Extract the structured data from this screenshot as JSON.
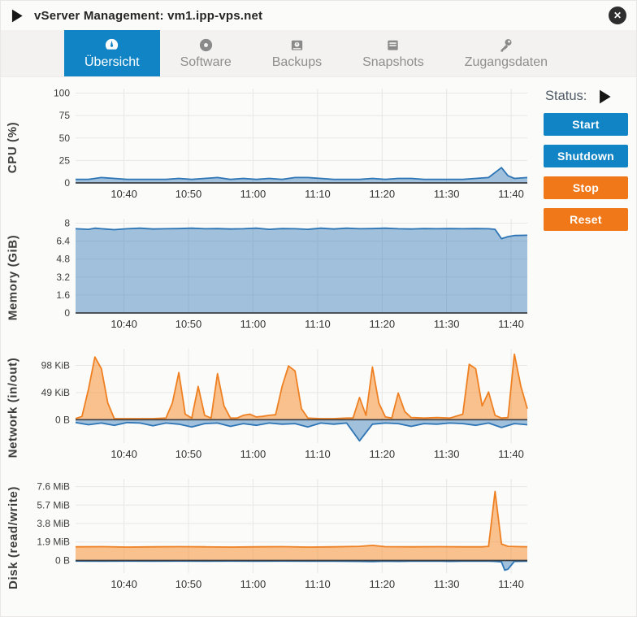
{
  "window": {
    "title": "vServer Management: vm1.ipp-vps.net",
    "close_glyph": "✕"
  },
  "tabs": [
    {
      "label": "Übersicht",
      "icon": "gauge-icon",
      "active": true
    },
    {
      "label": "Software",
      "icon": "disc-icon",
      "active": false
    },
    {
      "label": "Backups",
      "icon": "backup-drive-icon",
      "active": false
    },
    {
      "label": "Snapshots",
      "icon": "snapshot-drive-icon",
      "active": false
    },
    {
      "label": "Zugangsdaten",
      "icon": "key-icon",
      "active": false
    }
  ],
  "status": {
    "label": "Status:",
    "state_icon": "running-play-icon",
    "buttons": [
      {
        "label": "Start",
        "color": "#1184c5"
      },
      {
        "label": "Shutdown",
        "color": "#1184c5"
      },
      {
        "label": "Stop",
        "color": "#f07819"
      },
      {
        "label": "Reset",
        "color": "#f07819"
      }
    ]
  },
  "colors": {
    "accent_blue": "#1184c5",
    "accent_orange": "#f07819",
    "series_blue_line": "#2e75b5",
    "series_blue_fill": "rgba(49,119,181,0.45)",
    "series_orange_line": "#ef8022",
    "series_orange_fill": "rgba(245,146,52,0.55)"
  },
  "chart_data": [
    {
      "type": "area",
      "ylabel": "CPU (%)",
      "x_note": "minutes since 10:32:30",
      "xlim": [
        0,
        70
      ],
      "ylim": [
        0,
        105
      ],
      "grid": true,
      "yticks": [
        {
          "v": 0,
          "label": "0"
        },
        {
          "v": 25,
          "label": "25"
        },
        {
          "v": 50,
          "label": "50"
        },
        {
          "v": 75,
          "label": "75"
        },
        {
          "v": 100,
          "label": "100"
        }
      ],
      "xticks": [
        {
          "v": 7.5,
          "label": "10:40"
        },
        {
          "v": 17.5,
          "label": "10:50"
        },
        {
          "v": 27.5,
          "label": "11:00"
        },
        {
          "v": 37.5,
          "label": "11:10"
        },
        {
          "v": 47.5,
          "label": "11:20"
        },
        {
          "v": 57.5,
          "label": "11:30"
        },
        {
          "v": 67.5,
          "label": "11:40"
        }
      ],
      "series": [
        {
          "name": "cpu-usage",
          "color": "#2e75b5",
          "fill": "rgba(49,119,181,0.45)",
          "x": [
            0,
            2,
            4,
            6,
            8,
            10,
            12,
            14,
            16,
            18,
            20,
            22,
            24,
            26,
            28,
            30,
            32,
            34,
            36,
            38,
            40,
            42,
            44,
            46,
            48,
            50,
            52,
            54,
            56,
            58,
            60,
            62,
            64,
            66,
            67,
            68,
            70
          ],
          "values": [
            4,
            4,
            6,
            5,
            4,
            4,
            4,
            4,
            5,
            4,
            5,
            6,
            4,
            5,
            4,
            5,
            4,
            6,
            6,
            5,
            4,
            4,
            4,
            5,
            4,
            5,
            5,
            4,
            4,
            4,
            4,
            5,
            6,
            17,
            8,
            5,
            6
          ]
        }
      ]
    },
    {
      "type": "area",
      "ylabel": "Memory (GiB)",
      "x_note": "minutes since 10:32:30",
      "xlim": [
        0,
        70
      ],
      "ylim": [
        0,
        8.4
      ],
      "grid": true,
      "yticks": [
        {
          "v": 0,
          "label": "0"
        },
        {
          "v": 1.6,
          "label": "1.6"
        },
        {
          "v": 3.2,
          "label": "3.2"
        },
        {
          "v": 4.8,
          "label": "4.8"
        },
        {
          "v": 6.4,
          "label": "6.4"
        },
        {
          "v": 8,
          "label": "8"
        }
      ],
      "xticks": [
        {
          "v": 7.5,
          "label": "10:40"
        },
        {
          "v": 17.5,
          "label": "10:50"
        },
        {
          "v": 27.5,
          "label": "11:00"
        },
        {
          "v": 37.5,
          "label": "11:10"
        },
        {
          "v": 47.5,
          "label": "11:20"
        },
        {
          "v": 57.5,
          "label": "11:30"
        },
        {
          "v": 67.5,
          "label": "11:40"
        }
      ],
      "series": [
        {
          "name": "memory-used",
          "color": "#2e75b5",
          "fill": "rgba(49,119,181,0.45)",
          "x": [
            0,
            2,
            3,
            4,
            6,
            8,
            10,
            12,
            14,
            16,
            18,
            20,
            22,
            24,
            26,
            28,
            30,
            32,
            34,
            36,
            38,
            40,
            42,
            44,
            46,
            48,
            50,
            52,
            54,
            56,
            58,
            60,
            62,
            64,
            65,
            66,
            67,
            68,
            70
          ],
          "values": [
            7.5,
            7.45,
            7.55,
            7.5,
            7.42,
            7.5,
            7.55,
            7.48,
            7.5,
            7.52,
            7.55,
            7.5,
            7.52,
            7.48,
            7.5,
            7.55,
            7.45,
            7.52,
            7.5,
            7.45,
            7.55,
            7.48,
            7.55,
            7.5,
            7.52,
            7.55,
            7.5,
            7.48,
            7.52,
            7.5,
            7.52,
            7.5,
            7.52,
            7.5,
            7.45,
            6.62,
            6.8,
            6.9,
            6.92
          ]
        }
      ]
    },
    {
      "type": "area",
      "ylabel": "Network (in/out)",
      "x_note": "minutes since 10:32:30; values in KiB, inbound drawn negative",
      "xlim": [
        0,
        70
      ],
      "ylim": [
        -42,
        128
      ],
      "grid": true,
      "yticks": [
        {
          "v": 0,
          "label": "0 B"
        },
        {
          "v": 49,
          "label": "49 KiB"
        },
        {
          "v": 98,
          "label": "98 KiB"
        }
      ],
      "xticks": [
        {
          "v": 7.5,
          "label": "10:40"
        },
        {
          "v": 17.5,
          "label": "10:50"
        },
        {
          "v": 27.5,
          "label": "11:00"
        },
        {
          "v": 37.5,
          "label": "11:10"
        },
        {
          "v": 47.5,
          "label": "11:20"
        },
        {
          "v": 57.5,
          "label": "11:30"
        },
        {
          "v": 67.5,
          "label": "11:40"
        }
      ],
      "series": [
        {
          "name": "network-out-kib",
          "color": "#ef8022",
          "fill": "rgba(245,146,52,0.55)",
          "x": [
            0,
            1,
            2,
            3,
            4,
            5,
            6,
            8,
            10,
            12,
            14,
            15,
            16,
            17,
            18,
            19,
            20,
            21,
            22,
            23,
            24,
            25,
            26,
            27,
            28,
            29,
            30,
            31,
            32,
            33,
            34,
            35,
            36,
            38,
            40,
            42,
            43,
            44,
            45,
            46,
            47,
            48,
            49,
            50,
            51,
            52,
            54,
            56,
            58,
            60,
            61,
            62,
            63,
            64,
            65,
            66,
            67,
            68,
            69,
            70
          ],
          "values": [
            2,
            6,
            55,
            113,
            92,
            30,
            2,
            2,
            2,
            2,
            3,
            30,
            85,
            10,
            3,
            60,
            8,
            3,
            83,
            25,
            3,
            3,
            8,
            10,
            5,
            6,
            8,
            9,
            60,
            97,
            88,
            20,
            3,
            2,
            2,
            3,
            3,
            40,
            8,
            95,
            30,
            5,
            3,
            48,
            15,
            4,
            3,
            4,
            3,
            10,
            100,
            92,
            25,
            50,
            8,
            3,
            4,
            118,
            60,
            20
          ]
        },
        {
          "name": "network-in-kib",
          "color": "#2e75b5",
          "fill": "rgba(49,119,181,0.45)",
          "x": [
            0,
            2,
            4,
            6,
            8,
            10,
            12,
            14,
            16,
            18,
            20,
            22,
            24,
            26,
            28,
            30,
            32,
            34,
            36,
            38,
            40,
            42,
            44,
            46,
            48,
            50,
            52,
            54,
            56,
            58,
            60,
            62,
            64,
            66,
            68,
            70
          ],
          "values": [
            -5,
            -9,
            -6,
            -10,
            -5,
            -6,
            -11,
            -6,
            -8,
            -13,
            -7,
            -6,
            -12,
            -7,
            -10,
            -6,
            -8,
            -7,
            -13,
            -6,
            -8,
            -6,
            -38,
            -8,
            -6,
            -7,
            -12,
            -7,
            -8,
            -6,
            -7,
            -10,
            -6,
            -14,
            -7,
            -9
          ]
        }
      ]
    },
    {
      "type": "area",
      "ylabel": "Disk (read/write)",
      "x_note": "minutes since 10:32:30; values in MiB, reads drawn negative",
      "xlim": [
        0,
        70
      ],
      "ylim": [
        -1.3,
        8.4
      ],
      "grid": true,
      "yticks": [
        {
          "v": 0,
          "label": "0 B"
        },
        {
          "v": 1.9,
          "label": "1.9 MiB"
        },
        {
          "v": 3.8,
          "label": "3.8 MiB"
        },
        {
          "v": 5.7,
          "label": "5.7 MiB"
        },
        {
          "v": 7.6,
          "label": "7.6 MiB"
        }
      ],
      "xticks": [
        {
          "v": 7.5,
          "label": "10:40"
        },
        {
          "v": 17.5,
          "label": "10:50"
        },
        {
          "v": 27.5,
          "label": "11:00"
        },
        {
          "v": 37.5,
          "label": "11:10"
        },
        {
          "v": 47.5,
          "label": "11:20"
        },
        {
          "v": 57.5,
          "label": "11:30"
        },
        {
          "v": 67.5,
          "label": "11:40"
        }
      ],
      "series": [
        {
          "name": "disk-write-mib",
          "color": "#ef8022",
          "fill": "rgba(245,146,52,0.55)",
          "x": [
            0,
            4,
            8,
            12,
            16,
            20,
            24,
            28,
            32,
            36,
            40,
            44,
            46,
            48,
            52,
            56,
            60,
            63,
            64,
            65,
            66,
            67,
            70
          ],
          "values": [
            1.4,
            1.42,
            1.38,
            1.4,
            1.42,
            1.4,
            1.38,
            1.4,
            1.42,
            1.38,
            1.4,
            1.45,
            1.55,
            1.42,
            1.4,
            1.42,
            1.4,
            1.4,
            1.45,
            7.1,
            1.7,
            1.45,
            1.4
          ]
        },
        {
          "name": "disk-read-mib",
          "color": "#2e75b5",
          "fill": "rgba(49,119,181,0.45)",
          "x": [
            0,
            4,
            8,
            12,
            16,
            20,
            24,
            28,
            32,
            36,
            40,
            44,
            46,
            48,
            50,
            52,
            56,
            58,
            60,
            64,
            65,
            66,
            66.5,
            67,
            68,
            70
          ],
          "values": [
            -0.06,
            -0.08,
            -0.06,
            -0.07,
            -0.06,
            -0.08,
            -0.06,
            -0.07,
            -0.06,
            -0.08,
            -0.07,
            -0.1,
            -0.12,
            -0.08,
            -0.1,
            -0.07,
            -0.06,
            -0.1,
            -0.07,
            -0.08,
            -0.1,
            -0.15,
            -1.0,
            -0.9,
            -0.1,
            -0.08
          ]
        }
      ]
    }
  ]
}
